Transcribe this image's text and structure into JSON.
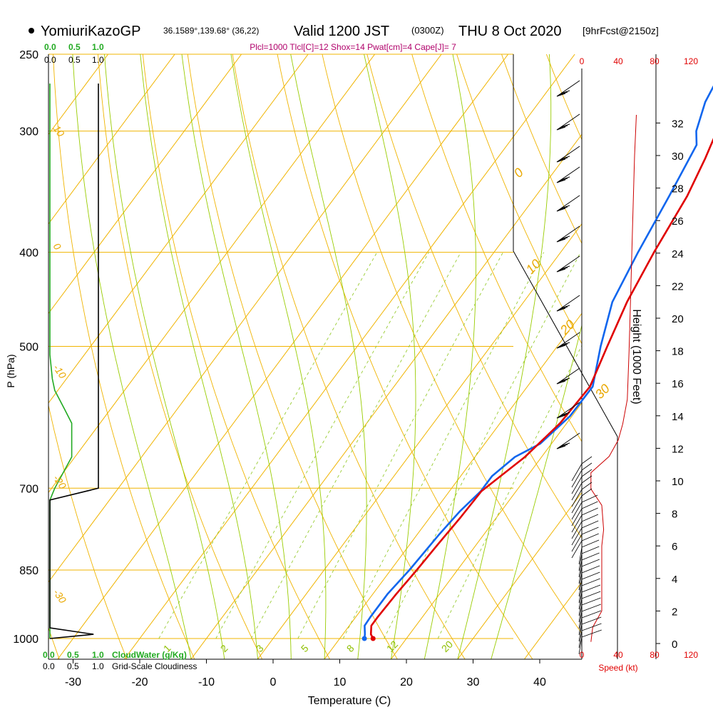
{
  "header": {
    "station": "YomiuriKazoGP",
    "coords": "36.1589°,139.68° (36,22)",
    "valid": "Valid 1200 JST",
    "utc": "(0300Z)",
    "date": "THU 8 Oct 2020",
    "forecast": "[9hrFcst@2150z]",
    "params": "Plcl=1000 Tlcl[C]=12 Shox=14 Pwat[cm]=4 Cape[J]= 7"
  },
  "scales": {
    "green_top": [
      "0.0",
      "0.5",
      "1.0"
    ],
    "black_top": [
      "0.0",
      "0.5",
      "1.0"
    ],
    "green_bottom": [
      "0.0",
      "0.5",
      "1.0"
    ],
    "black_bottom": [
      "0.0",
      "0.5",
      "1.0"
    ],
    "cloudwater_label": "CloudWater (g/Kg)",
    "cloudiness_label": "Grid-Scale Cloudiness",
    "speed_ticks": [
      "0",
      "40",
      "80",
      "120"
    ],
    "speed_label": "Speed (kt)"
  },
  "axes": {
    "ylabel": "P (hPa)",
    "xlabel": "Temperature (C)",
    "height_label": "Height (1000 Feet)",
    "pressure_ticks": [
      250,
      300,
      400,
      500,
      700,
      850,
      1000
    ],
    "temp_ticks": [
      -30,
      -20,
      -10,
      0,
      10,
      20,
      30,
      40
    ],
    "height_ticks": [
      0,
      2,
      4,
      6,
      8,
      10,
      12,
      14,
      16,
      18,
      20,
      22,
      24,
      26,
      28,
      30,
      32
    ],
    "dry_adiabat_labels": [
      "10",
      "0",
      "-10",
      "-20",
      "-30"
    ],
    "moist_labels": [
      "0",
      "10",
      "20",
      "30"
    ],
    "mixing_labels": [
      "1",
      "2",
      "3",
      "5",
      "8",
      "12",
      "20"
    ]
  },
  "colors": {
    "temperature": "#e00000",
    "dewpoint": "#1166ee",
    "isotherm": "#f0b400",
    "isobar": "#f0b400",
    "moist_adiabat": "#99cc00",
    "mixing_ratio": "#99cc33",
    "cloudwater": "#22aa22",
    "speed": "#cc0000"
  },
  "chart_data": {
    "type": "line",
    "temperature_profile": [
      {
        "p": 1000,
        "t": 15.0
      },
      {
        "p": 990,
        "t": 14.2
      },
      {
        "p": 970,
        "t": 13.3
      },
      {
        "p": 950,
        "t": 13.3
      },
      {
        "p": 900,
        "t": 13.5
      },
      {
        "p": 850,
        "t": 13.9
      },
      {
        "p": 800,
        "t": 14.2
      },
      {
        "p": 750,
        "t": 14.6
      },
      {
        "p": 705,
        "t": 14.8
      },
      {
        "p": 650,
        "t": 17.5
      },
      {
        "p": 600,
        "t": 19.0
      },
      {
        "p": 550,
        "t": 19.4
      },
      {
        "p": 500,
        "t": 17.5
      },
      {
        "p": 450,
        "t": 15.5
      },
      {
        "p": 400,
        "t": 14.0
      },
      {
        "p": 350,
        "t": 12.7
      },
      {
        "p": 320,
        "t": 11.2
      },
      {
        "p": 300,
        "t": 9.9
      },
      {
        "p": 280,
        "t": 8.5
      },
      {
        "p": 268,
        "t": 7.8
      }
    ],
    "dewpoint_profile": [
      {
        "p": 1000,
        "t": 13.7
      },
      {
        "p": 990,
        "t": 13.3
      },
      {
        "p": 970,
        "t": 12.3
      },
      {
        "p": 950,
        "t": 12.2
      },
      {
        "p": 900,
        "t": 12.2
      },
      {
        "p": 850,
        "t": 12.8
      },
      {
        "p": 780,
        "t": 13.3
      },
      {
        "p": 740,
        "t": 13.8
      },
      {
        "p": 705,
        "t": 14.7
      },
      {
        "p": 680,
        "t": 14.7
      },
      {
        "p": 650,
        "t": 16.0
      },
      {
        "p": 630,
        "t": 18.3
      },
      {
        "p": 590,
        "t": 19.7
      },
      {
        "p": 550,
        "t": 19.8
      },
      {
        "p": 500,
        "t": 16.5
      },
      {
        "p": 450,
        "t": 13.3
      },
      {
        "p": 400,
        "t": 11.6
      },
      {
        "p": 350,
        "t": 10.0
      },
      {
        "p": 310,
        "t": 8.4
      },
      {
        "p": 300,
        "t": 6.8
      },
      {
        "p": 280,
        "t": 4.9
      },
      {
        "p": 268,
        "t": 4.3
      }
    ],
    "cloudwater_profile": [
      {
        "p": 1000,
        "v": 0.0
      },
      {
        "p": 720,
        "v": 0.0
      },
      {
        "p": 700,
        "v": 0.1
      },
      {
        "p": 650,
        "v": 0.45
      },
      {
        "p": 600,
        "v": 0.45
      },
      {
        "p": 580,
        "v": 0.3
      },
      {
        "p": 555,
        "v": 0.1
      },
      {
        "p": 540,
        "v": 0.05
      },
      {
        "p": 510,
        "v": 0.0
      },
      {
        "p": 268,
        "v": 0.0
      }
    ],
    "cloudiness_profile": [
      {
        "p": 1000,
        "v": 0.0
      },
      {
        "p": 990,
        "v": 0.9
      },
      {
        "p": 975,
        "v": 0.0
      },
      {
        "p": 720,
        "v": 0.0
      },
      {
        "p": 700,
        "v": 1.0
      },
      {
        "p": 268,
        "v": 1.0
      }
    ],
    "wind_speed_profile": [
      {
        "h": 0.1,
        "kt": 10
      },
      {
        "h": 1.0,
        "kt": 12
      },
      {
        "h": 2.0,
        "kt": 22
      },
      {
        "h": 4.0,
        "kt": 22
      },
      {
        "h": 6.0,
        "kt": 22
      },
      {
        "h": 7.0,
        "kt": 24
      },
      {
        "h": 8.5,
        "kt": 22
      },
      {
        "h": 9.5,
        "kt": 10
      },
      {
        "h": 10.5,
        "kt": 10
      },
      {
        "h": 11.5,
        "kt": 30
      },
      {
        "h": 12.5,
        "kt": 40
      },
      {
        "h": 13.5,
        "kt": 45
      },
      {
        "h": 15.0,
        "kt": 50
      },
      {
        "h": 18.0,
        "kt": 52
      },
      {
        "h": 22.0,
        "kt": 54
      },
      {
        "h": 26.0,
        "kt": 56
      },
      {
        "h": 30.0,
        "kt": 58
      },
      {
        "h": 32.5,
        "kt": 60
      }
    ]
  }
}
